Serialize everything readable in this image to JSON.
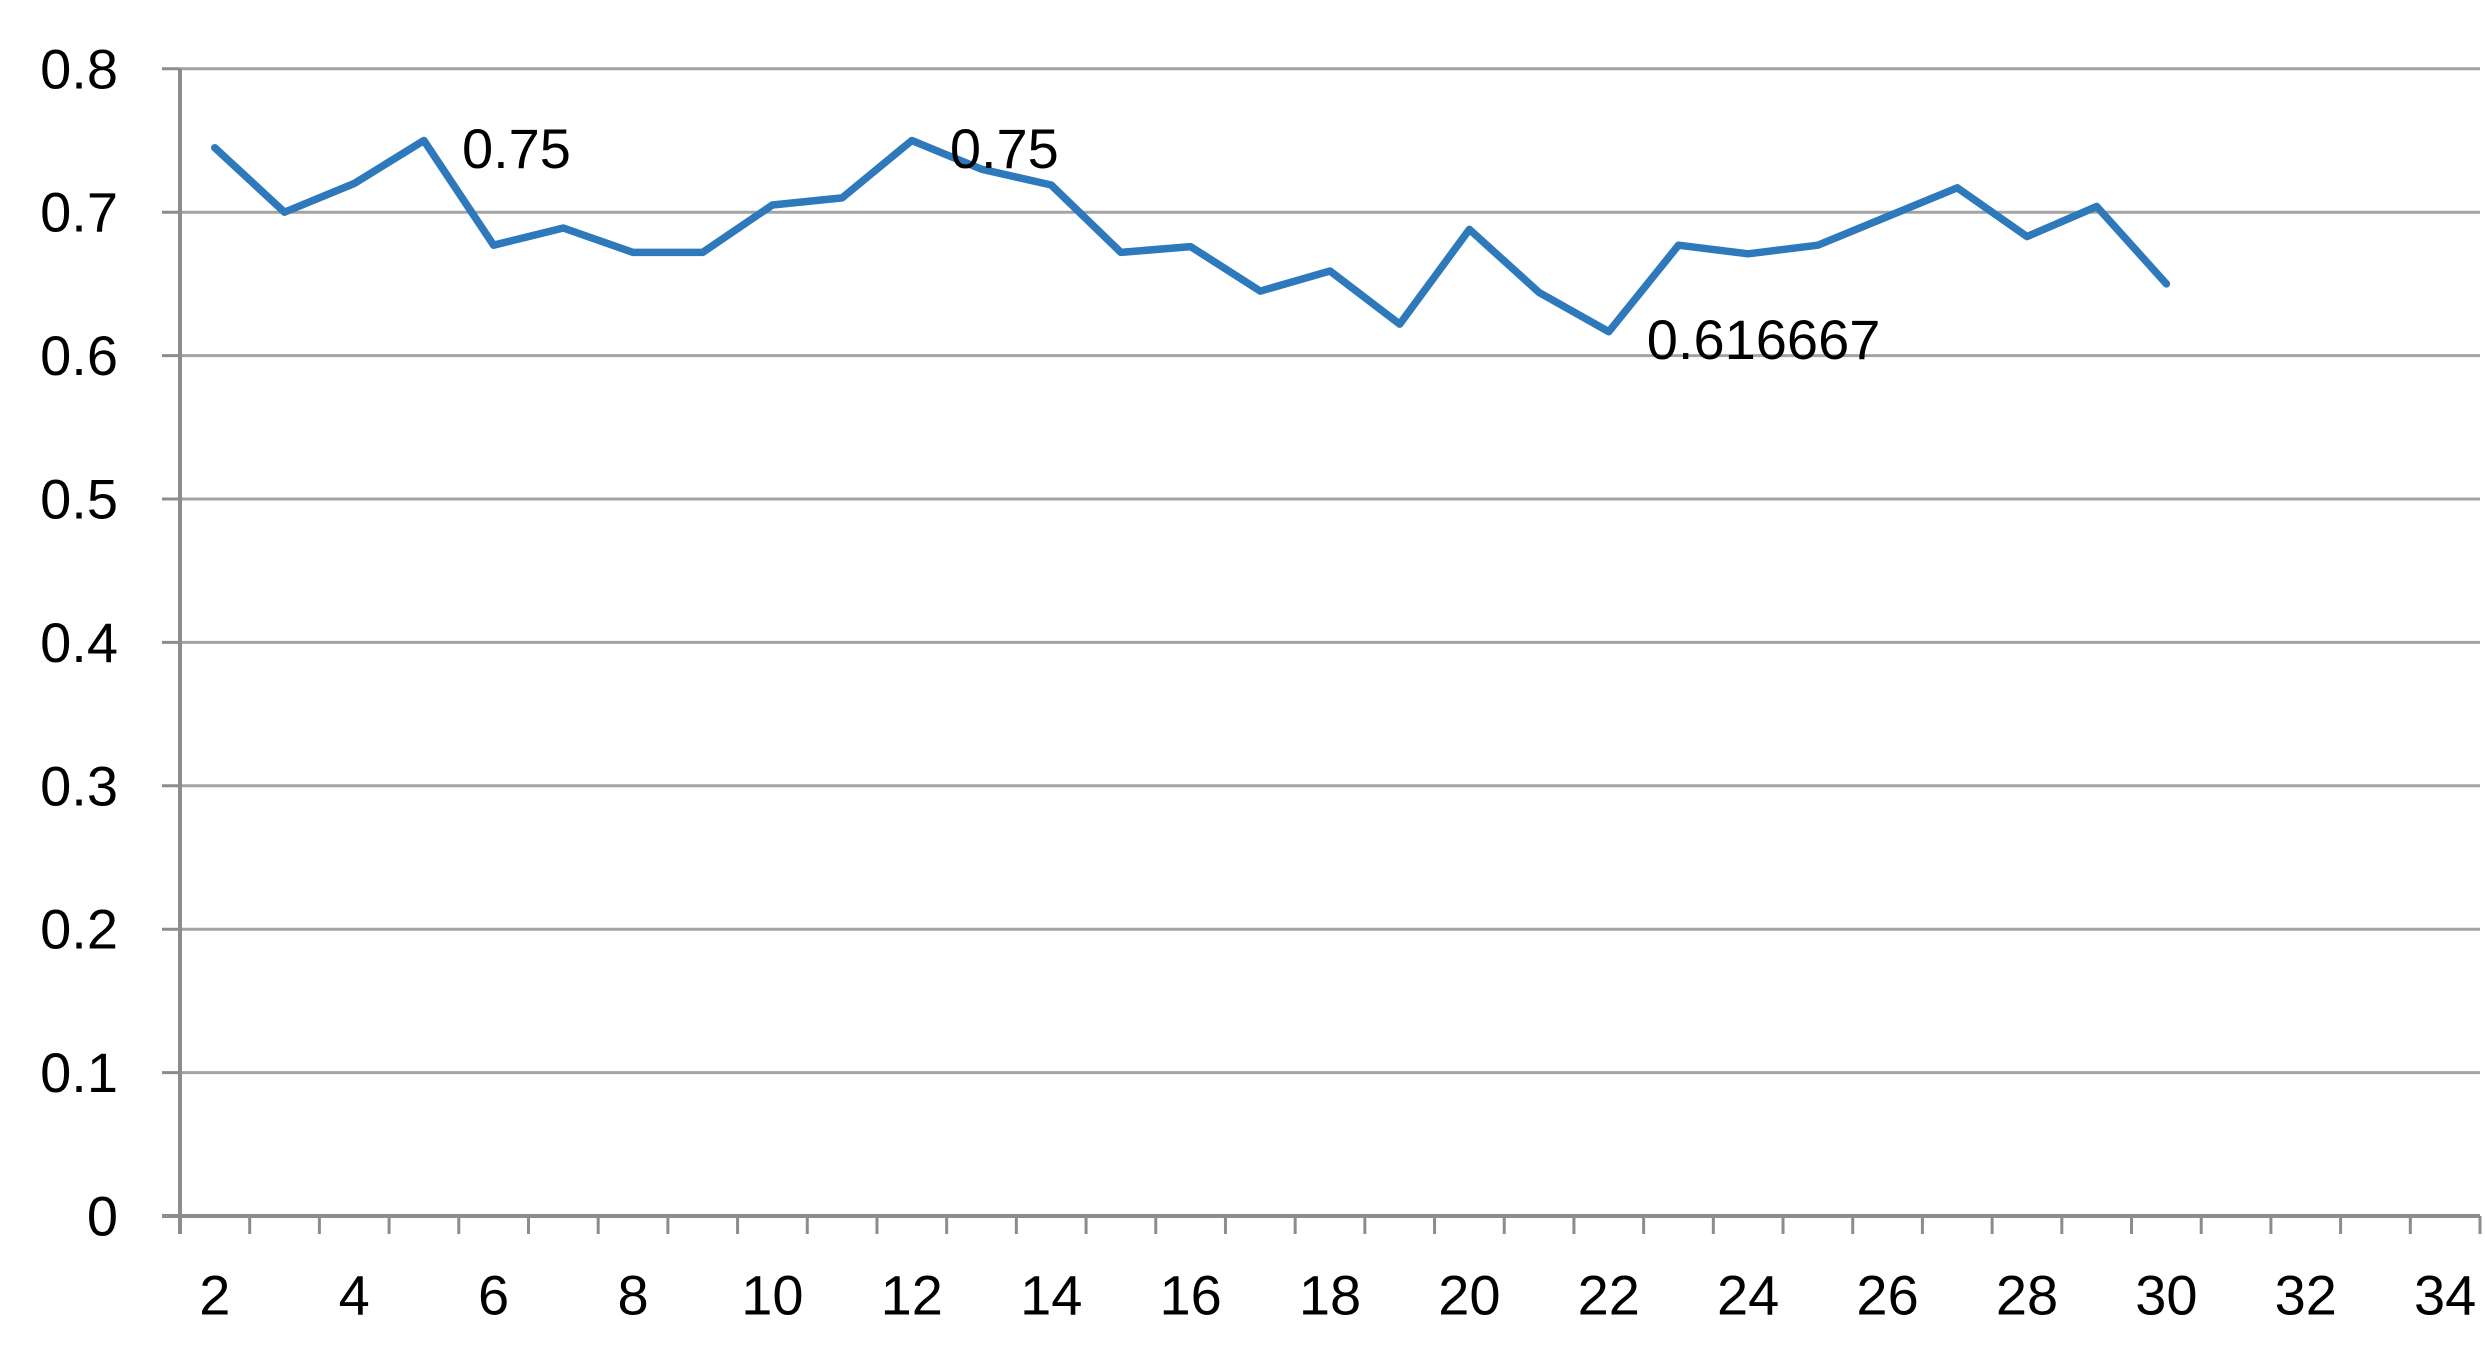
{
  "chart_data": {
    "type": "line",
    "title": "",
    "xlabel": "",
    "ylabel": "",
    "x": [
      2,
      3,
      4,
      5,
      6,
      7,
      8,
      9,
      10,
      11,
      12,
      13,
      14,
      15,
      16,
      17,
      18,
      19,
      20,
      21,
      22,
      23,
      24,
      25,
      26,
      27,
      28,
      29,
      30
    ],
    "values": [
      0.745,
      0.7,
      0.72,
      0.75,
      0.677,
      0.689,
      0.672,
      0.672,
      0.705,
      0.71,
      0.75,
      0.73,
      0.719,
      0.672,
      0.676,
      0.645,
      0.659,
      0.622,
      0.688,
      0.644,
      0.6167,
      0.677,
      0.671,
      0.677,
      0.697,
      0.717,
      0.683,
      0.704,
      0.65
    ],
    "x_axis": {
      "first_category": 2,
      "last_category": 34,
      "tick_interval": 1,
      "label_interval": 2,
      "tick_labels": [
        "2",
        "4",
        "6",
        "8",
        "10",
        "12",
        "14",
        "16",
        "18",
        "20",
        "22",
        "24",
        "26",
        "28",
        "30",
        "32",
        "34"
      ]
    },
    "y_axis": {
      "min": 0,
      "max": 0.8,
      "step": 0.1,
      "tick_labels": [
        "0",
        "0.1",
        "0.2",
        "0.3",
        "0.4",
        "0.5",
        "0.6",
        "0.7",
        "0.8"
      ]
    },
    "data_labels": [
      {
        "x": 5,
        "text": "0.75"
      },
      {
        "x": 12,
        "text": "0.75"
      },
      {
        "x": 22,
        "text": "0.616667"
      }
    ],
    "grid": "horizontal",
    "legend": "none",
    "colors": {
      "series_line": "#2e79bc",
      "gridline": "#a3a3a3",
      "axis_line": "#8c8c8c",
      "tick": "#8c8c8c",
      "label_text": "#000000",
      "background": "#ffffff"
    }
  }
}
